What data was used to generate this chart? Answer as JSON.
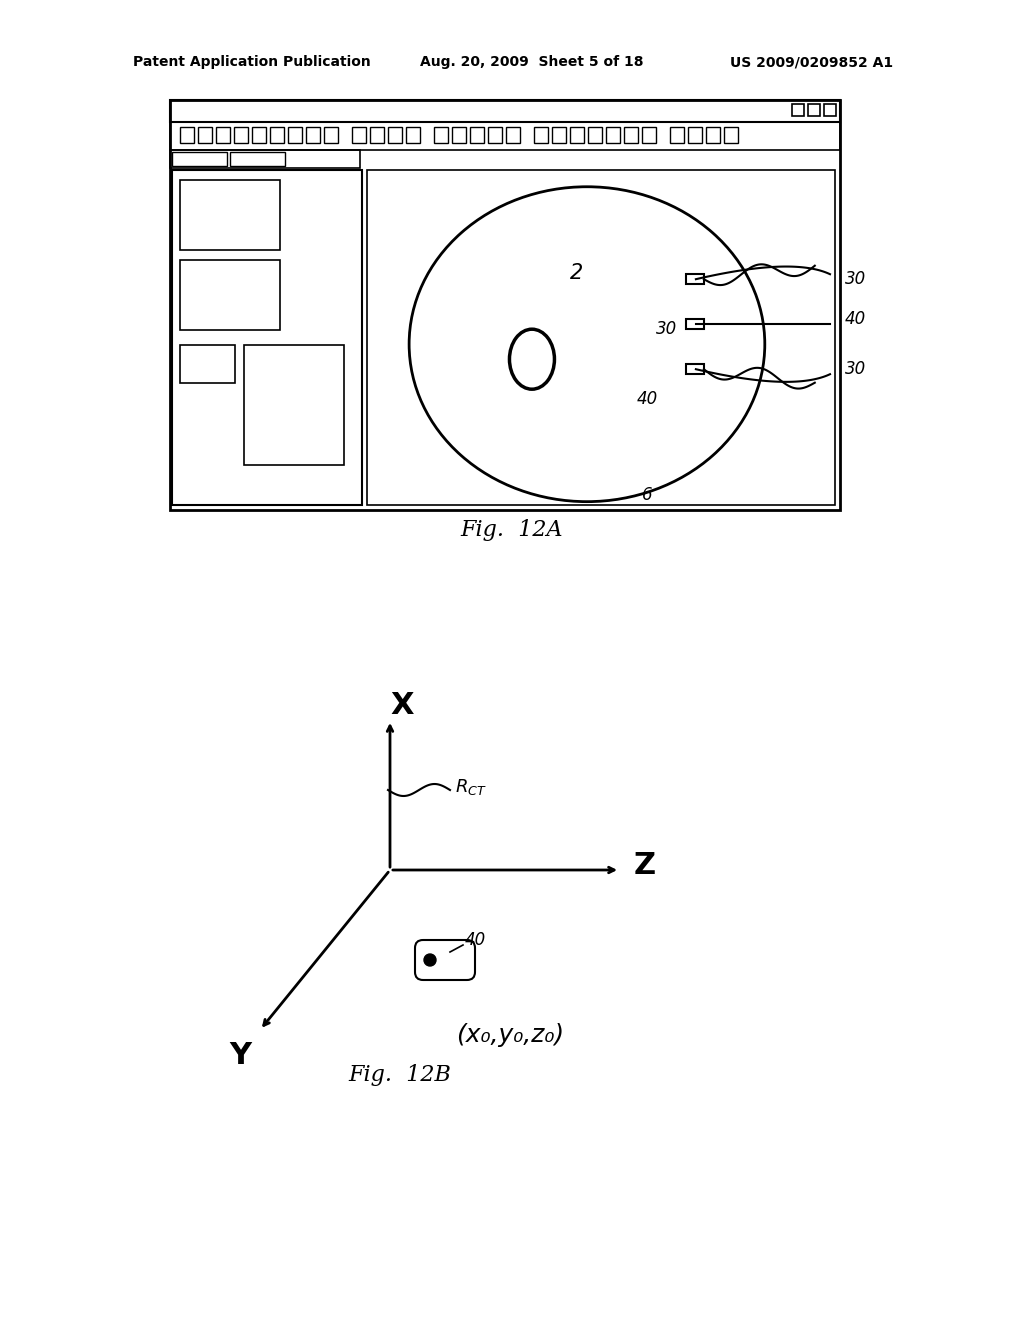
{
  "bg_color": "#ffffff",
  "line_color": "#000000",
  "header_text_left": "Patent Application Publication",
  "header_text_mid": "Aug. 20, 2009  Sheet 5 of 18",
  "header_text_right": "US 2009/0209852 A1",
  "fig12a_label": "Fig.  12A",
  "fig12b_label": "Fig.  12B",
  "label_2": "2",
  "label_30a": "30",
  "label_30b": "30",
  "label_30c": "30",
  "label_40a": "40",
  "label_40b": "40",
  "label_6": "6",
  "label_rct": "R",
  "label_rct_sub": "CT",
  "label_x": "X",
  "label_y": "Y",
  "label_z": "Z",
  "label_40c": "40",
  "label_coords": "(x₀,y₀,z₀)"
}
